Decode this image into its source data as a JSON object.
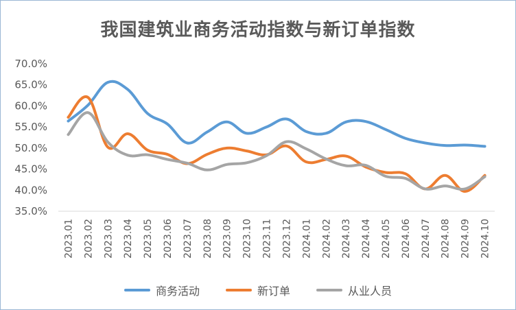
{
  "chart_data": {
    "type": "line",
    "title": "我国建筑业商务活动指数与新订单指数",
    "categories": [
      "2023.01",
      "2023.02",
      "2023.03",
      "2023.04",
      "2023.05",
      "2023.06",
      "2023.07",
      "2023.08",
      "2023.09",
      "2023.10",
      "2023.11",
      "2023.12",
      "2024.01",
      "2024.02",
      "2024.03",
      "2024.04",
      "2024.05",
      "2024.06",
      "2024.07",
      "2024.08",
      "2024.09",
      "2024.10"
    ],
    "ylim": [
      35,
      70
    ],
    "yticks": [
      "70.0%",
      "65.0%",
      "60.0%",
      "55.0%",
      "50.0%",
      "45.0%",
      "40.0%",
      "35.0%"
    ],
    "legend_position": "bottom",
    "grid": false,
    "series": [
      {
        "name": "商务活动",
        "color": "#5b9bd5",
        "values": [
          56.4,
          60.2,
          65.6,
          63.9,
          58.2,
          55.7,
          51.2,
          53.8,
          56.2,
          53.5,
          55.0,
          56.9,
          53.9,
          53.5,
          56.2,
          56.3,
          54.4,
          52.3,
          51.2,
          50.6,
          50.7,
          50.4
        ]
      },
      {
        "name": "新订单",
        "color": "#ed7d31",
        "values": [
          57.3,
          62.0,
          50.2,
          53.4,
          49.5,
          48.5,
          46.3,
          48.5,
          50.0,
          49.3,
          48.4,
          50.5,
          46.7,
          47.3,
          48.1,
          45.5,
          44.2,
          43.9,
          40.3,
          43.5,
          39.7,
          43.5
        ]
      },
      {
        "name": "从业人员",
        "color": "#a5a5a5",
        "values": [
          53.2,
          58.4,
          51.4,
          48.3,
          48.4,
          47.3,
          46.4,
          44.8,
          46.1,
          46.5,
          48.2,
          51.5,
          49.8,
          47.4,
          45.8,
          45.9,
          43.3,
          42.8,
          40.3,
          41.0,
          40.3,
          43.2
        ]
      }
    ]
  }
}
